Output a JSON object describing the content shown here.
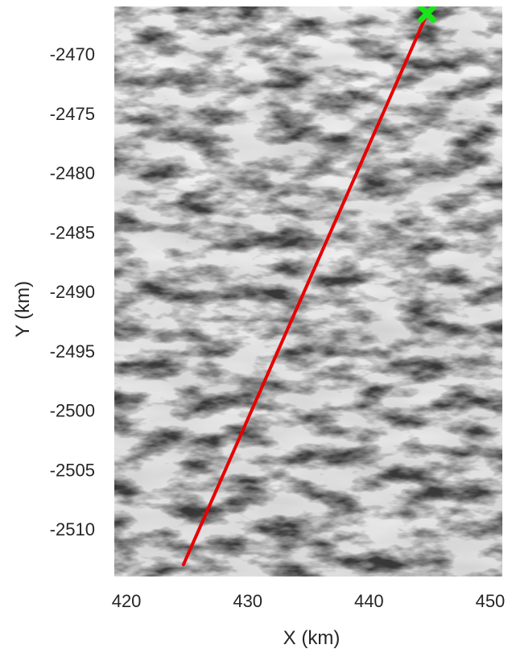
{
  "chart_data": {
    "type": "map",
    "xlabel": "X (km)",
    "ylabel": "Y (km)",
    "xlim": [
      419,
      451
    ],
    "ylim": [
      -2514,
      -2466
    ],
    "x_ticks": [
      420,
      430,
      440,
      450
    ],
    "y_ticks": [
      -2470,
      -2475,
      -2480,
      -2485,
      -2490,
      -2495,
      -2500,
      -2505,
      -2510
    ],
    "x_tick_labels": [
      "420",
      "430",
      "440",
      "450"
    ],
    "y_tick_labels": [
      "-2470",
      "-2475",
      "-2480",
      "-2485",
      "-2490",
      "-2495",
      "-2500",
      "-2505",
      "-2510"
    ],
    "background": "grayscale satellite image of glacier terrain",
    "series": [
      {
        "type": "line",
        "color": "#e60000",
        "x": [
          424.7,
          444.8
        ],
        "y": [
          -2513.0,
          -2466.6
        ]
      }
    ],
    "markers": [
      {
        "x": 444.8,
        "y": -2466.6,
        "color": "#19e619",
        "shape": "X"
      }
    ]
  }
}
